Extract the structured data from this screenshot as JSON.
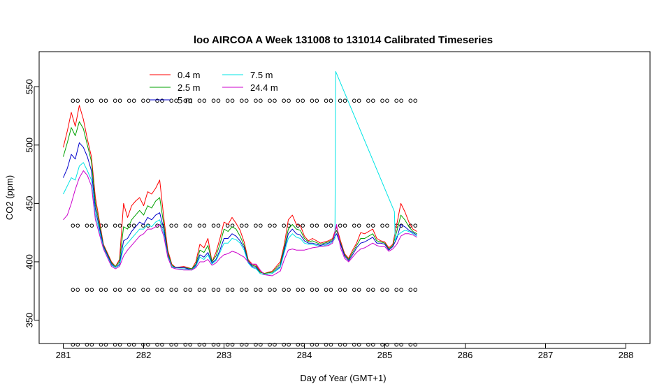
{
  "chart_data": {
    "type": "line",
    "title": "loo AIRCOA A  Week 131008 to 131014  Calibrated Timeseries",
    "xlabel": "Day of Year (GMT+1)",
    "ylabel": "CO2 (ppm)",
    "xlim": [
      280.7,
      288.3
    ],
    "ylim": [
      330,
      580
    ],
    "x_ticks": [
      281,
      282,
      283,
      284,
      285,
      286,
      287,
      288
    ],
    "y_ticks": [
      350,
      400,
      450,
      500,
      550
    ],
    "grid": false,
    "legend_position": "top-left",
    "series": [
      {
        "name": "0.4 m",
        "color": "#ff0000",
        "x": [
          281.0,
          281.05,
          281.1,
          281.15,
          281.2,
          281.25,
          281.3,
          281.35,
          281.4,
          281.5,
          281.6,
          281.65,
          281.7,
          281.75,
          281.8,
          281.85,
          281.9,
          281.95,
          282.0,
          282.05,
          282.1,
          282.15,
          282.2,
          282.25,
          282.3,
          282.35,
          282.4,
          282.5,
          282.6,
          282.65,
          282.7,
          282.75,
          282.8,
          282.85,
          282.9,
          282.95,
          283.0,
          283.05,
          283.1,
          283.15,
          283.2,
          283.25,
          283.3,
          283.35,
          283.4,
          283.45,
          283.5,
          283.6,
          283.7,
          283.75,
          283.8,
          283.85,
          283.9,
          283.95,
          284.0,
          284.05,
          284.1,
          284.2,
          284.3,
          284.35,
          284.4,
          284.45,
          284.5,
          284.55,
          284.6,
          284.65,
          284.7,
          284.75,
          284.8,
          284.85,
          284.9,
          284.95,
          285.0,
          285.05,
          285.1,
          285.15,
          285.2,
          285.25,
          285.3,
          285.35,
          285.4
        ],
        "y": [
          498,
          512,
          528,
          516,
          534,
          522,
          505,
          490,
          455,
          415,
          400,
          396,
          402,
          450,
          438,
          448,
          452,
          455,
          448,
          460,
          458,
          463,
          470,
          438,
          410,
          398,
          395,
          396,
          394,
          400,
          415,
          412,
          420,
          400,
          408,
          420,
          434,
          432,
          438,
          433,
          427,
          417,
          402,
          398,
          397,
          392,
          390,
          392,
          400,
          415,
          436,
          440,
          432,
          431,
          422,
          418,
          420,
          416,
          418,
          420,
          430,
          418,
          407,
          403,
          410,
          416,
          425,
          424,
          426,
          428,
          420,
          418,
          417,
          412,
          415,
          432,
          450,
          443,
          434,
          428,
          426
        ]
      },
      {
        "name": "2.5 m",
        "color": "#00a000",
        "x": [
          281.0,
          281.05,
          281.1,
          281.15,
          281.2,
          281.25,
          281.3,
          281.35,
          281.4,
          281.5,
          281.6,
          281.65,
          281.7,
          281.75,
          281.8,
          281.85,
          281.9,
          281.95,
          282.0,
          282.05,
          282.1,
          282.15,
          282.2,
          282.25,
          282.3,
          282.35,
          282.4,
          282.5,
          282.6,
          282.65,
          282.7,
          282.75,
          282.8,
          282.85,
          282.9,
          282.95,
          283.0,
          283.05,
          283.1,
          283.15,
          283.2,
          283.25,
          283.3,
          283.35,
          283.4,
          283.45,
          283.5,
          283.6,
          283.7,
          283.75,
          283.8,
          283.85,
          283.9,
          283.95,
          284.0,
          284.05,
          284.1,
          284.2,
          284.3,
          284.35,
          284.4,
          284.45,
          284.5,
          284.55,
          284.6,
          284.65,
          284.7,
          284.75,
          284.8,
          284.85,
          284.9,
          284.95,
          285.0,
          285.05,
          285.1,
          285.15,
          285.2,
          285.25,
          285.3,
          285.35,
          285.4
        ],
        "y": [
          490,
          502,
          515,
          508,
          520,
          514,
          500,
          486,
          450,
          414,
          399,
          396,
          400,
          430,
          428,
          436,
          440,
          444,
          440,
          448,
          446,
          452,
          455,
          432,
          408,
          397,
          395,
          395,
          394,
          398,
          410,
          408,
          414,
          400,
          405,
          415,
          428,
          426,
          430,
          428,
          422,
          414,
          401,
          397,
          396,
          391,
          390,
          391,
          398,
          412,
          428,
          432,
          428,
          427,
          420,
          417,
          418,
          415,
          417,
          419,
          427,
          416,
          406,
          402,
          408,
          414,
          420,
          420,
          422,
          424,
          418,
          417,
          416,
          411,
          414,
          426,
          440,
          436,
          430,
          426,
          424
        ]
      },
      {
        "name": "5 m",
        "color": "#0000cc",
        "x": [
          281.0,
          281.05,
          281.1,
          281.15,
          281.2,
          281.25,
          281.3,
          281.35,
          281.4,
          281.5,
          281.6,
          281.65,
          281.7,
          281.75,
          281.8,
          281.85,
          281.9,
          281.95,
          282.0,
          282.05,
          282.1,
          282.15,
          282.2,
          282.25,
          282.3,
          282.35,
          282.4,
          282.5,
          282.6,
          282.65,
          282.7,
          282.75,
          282.8,
          282.85,
          282.9,
          282.95,
          283.0,
          283.05,
          283.1,
          283.15,
          283.2,
          283.25,
          283.3,
          283.35,
          283.4,
          283.45,
          283.5,
          283.6,
          283.7,
          283.75,
          283.8,
          283.85,
          283.9,
          283.95,
          284.0,
          284.05,
          284.1,
          284.2,
          284.3,
          284.35,
          284.4,
          284.45,
          284.5,
          284.55,
          284.6,
          284.65,
          284.7,
          284.75,
          284.8,
          284.85,
          284.9,
          284.95,
          285.0,
          285.05,
          285.1,
          285.15,
          285.2,
          285.25,
          285.3,
          285.35,
          285.4
        ],
        "y": [
          472,
          480,
          492,
          488,
          502,
          498,
          490,
          478,
          445,
          413,
          398,
          395,
          398,
          418,
          420,
          426,
          430,
          434,
          432,
          438,
          436,
          440,
          442,
          428,
          406,
          396,
          395,
          395,
          393,
          397,
          406,
          404,
          408,
          399,
          402,
          410,
          420,
          420,
          424,
          422,
          418,
          412,
          400,
          396,
          395,
          390,
          389,
          390,
          396,
          410,
          424,
          428,
          424,
          423,
          418,
          416,
          416,
          414,
          416,
          418,
          424,
          415,
          405,
          401,
          406,
          412,
          416,
          417,
          419,
          421,
          416,
          416,
          415,
          410,
          413,
          420,
          432,
          430,
          427,
          425,
          423
        ]
      },
      {
        "name": "7.5 m",
        "color": "#00e5e5",
        "x": [
          281.0,
          281.05,
          281.1,
          281.15,
          281.2,
          281.25,
          281.3,
          281.35,
          281.4,
          281.5,
          281.6,
          281.65,
          281.7,
          281.75,
          281.8,
          281.85,
          281.9,
          281.95,
          282.0,
          282.05,
          282.1,
          282.15,
          282.2,
          282.25,
          282.3,
          282.35,
          282.4,
          282.5,
          282.6,
          282.65,
          282.7,
          282.75,
          282.8,
          282.85,
          282.9,
          282.95,
          283.0,
          283.05,
          283.1,
          283.15,
          283.2,
          283.25,
          283.3,
          283.35,
          283.4,
          283.45,
          283.5,
          283.6,
          283.7,
          283.75,
          283.8,
          283.85,
          283.9,
          283.95,
          284.0,
          284.05,
          284.1,
          284.2,
          284.3,
          284.35,
          284.38,
          284.39,
          285.12,
          285.13,
          285.15,
          285.2,
          285.25,
          285.3,
          285.35,
          285.4
        ],
        "y": [
          458,
          465,
          472,
          470,
          482,
          485,
          478,
          470,
          440,
          412,
          397,
          395,
          397,
          412,
          416,
          420,
          424,
          428,
          428,
          432,
          430,
          434,
          436,
          424,
          405,
          396,
          394,
          394,
          393,
          396,
          404,
          402,
          406,
          398,
          401,
          408,
          416,
          416,
          420,
          419,
          416,
          410,
          399,
          395,
          394,
          390,
          389,
          390,
          395,
          408,
          420,
          424,
          421,
          420,
          416,
          415,
          415,
          413,
          415,
          417,
          420,
          563,
          443,
          418,
          422,
          425,
          427,
          426,
          424,
          422
        ]
      },
      {
        "name": "24.4 m",
        "color": "#cc00cc",
        "x": [
          281.0,
          281.05,
          281.1,
          281.15,
          281.2,
          281.25,
          281.3,
          281.35,
          281.4,
          281.5,
          281.6,
          281.65,
          281.7,
          281.75,
          281.8,
          281.85,
          281.9,
          281.95,
          282.0,
          282.05,
          282.1,
          282.15,
          282.2,
          282.25,
          282.3,
          282.35,
          282.4,
          282.5,
          282.6,
          282.65,
          282.7,
          282.75,
          282.8,
          282.85,
          282.9,
          282.95,
          283.0,
          283.05,
          283.1,
          283.15,
          283.2,
          283.25,
          283.3,
          283.35,
          283.4,
          283.45,
          283.5,
          283.6,
          283.7,
          283.75,
          283.8,
          283.85,
          283.9,
          283.95,
          284.0,
          284.05,
          284.1,
          284.2,
          284.3,
          284.35,
          284.4,
          284.45,
          284.5,
          284.55,
          284.6,
          284.65,
          284.7,
          284.75,
          284.8,
          284.85,
          284.9,
          284.95,
          285.0,
          285.05,
          285.1,
          285.15,
          285.2,
          285.25,
          285.3,
          285.35,
          285.4
        ],
        "y": [
          436,
          440,
          450,
          462,
          472,
          478,
          474,
          465,
          436,
          411,
          396,
          394,
          396,
          405,
          410,
          414,
          418,
          422,
          424,
          428,
          428,
          430,
          432,
          422,
          404,
          395,
          394,
          393,
          393,
          395,
          400,
          400,
          402,
          397,
          399,
          403,
          406,
          407,
          409,
          408,
          406,
          404,
          400,
          398,
          398,
          393,
          389,
          388,
          392,
          402,
          410,
          411,
          410,
          410,
          410,
          411,
          412,
          413,
          414,
          416,
          432,
          412,
          403,
          400,
          404,
          408,
          411,
          412,
          414,
          416,
          414,
          413,
          413,
          409,
          411,
          415,
          422,
          424,
          424,
          423,
          421
        ]
      }
    ],
    "calibration_markers": {
      "levels": [
        538,
        431,
        376,
        329
      ],
      "x_start": 281.12,
      "x_end": 285.32,
      "spacing": 0.175,
      "pairs": [
        {
          "level": 538,
          "dx": 0.06
        },
        {
          "level": 431,
          "dx": 0.06
        },
        {
          "level": 376,
          "dx": 0.06
        },
        {
          "level": 329,
          "dx": 0.06
        }
      ]
    }
  }
}
